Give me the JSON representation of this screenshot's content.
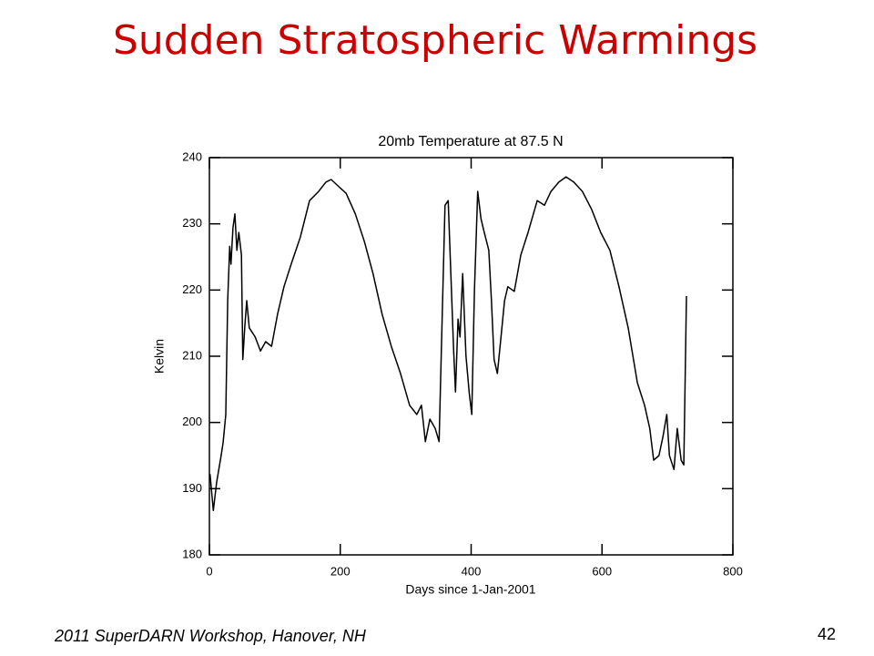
{
  "slide": {
    "title": "Sudden Stratospheric Warmings",
    "footer": "2011 SuperDARN Workshop, Hanover, NH",
    "page_number": "42"
  },
  "chart_data": {
    "type": "line",
    "title": "20mb Temperature at 87.5 N",
    "x_label": "Days since 1-Jan-2001",
    "y_label": "Kelvin",
    "color": "#000000",
    "x": [
      1,
      6,
      11,
      18,
      21,
      25,
      28,
      31,
      33,
      36,
      39,
      42,
      45,
      49,
      51,
      54,
      57,
      61,
      70,
      78,
      86,
      95,
      104,
      114,
      125,
      139,
      153,
      167,
      178,
      186,
      198,
      209,
      223,
      237,
      250,
      264,
      278,
      292,
      306,
      317,
      324,
      330,
      337,
      345,
      351,
      356,
      360,
      365,
      369,
      373,
      376,
      380,
      383,
      387,
      392,
      397,
      401,
      405,
      410,
      415,
      420,
      427,
      431,
      435,
      440,
      445,
      451,
      456,
      466,
      476,
      487,
      501,
      512,
      522,
      534,
      545,
      557,
      570,
      584,
      598,
      612,
      626,
      640,
      654,
      665,
      673,
      679,
      687,
      693,
      699,
      703,
      710,
      715,
      721,
      725,
      729
    ],
    "values": [
      192.2,
      186.7,
      190.9,
      195,
      197,
      201.2,
      218.4,
      226.6,
      223.9,
      229.4,
      231.5,
      226,
      228.7,
      225.3,
      209.5,
      214.3,
      218.4,
      214.3,
      212.9,
      210.8,
      212.2,
      211.5,
      216.3,
      220.5,
      223.9,
      228,
      233.5,
      234.9,
      236.3,
      236.7,
      235.6,
      234.6,
      231.5,
      227.3,
      222.5,
      216.3,
      211.5,
      207.4,
      202.6,
      201.2,
      202.6,
      197.1,
      200.5,
      199.1,
      197.1,
      217,
      232.8,
      233.5,
      222.5,
      211.5,
      204.6,
      215.6,
      212.9,
      222.5,
      210.1,
      204.6,
      201.2,
      219.8,
      234.9,
      230.8,
      228.7,
      226,
      218.4,
      209.5,
      207.4,
      212.2,
      218.4,
      220.5,
      219.8,
      225.3,
      228.7,
      233.5,
      232.8,
      234.9,
      236.3,
      237.1,
      236.3,
      234.9,
      232.2,
      228.7,
      226,
      220.5,
      214.3,
      206,
      202.6,
      199.1,
      194.3,
      195,
      197.8,
      201.2,
      195,
      192.9,
      199.1,
      194.3,
      193.6,
      219.1
    ],
    "xlim": [
      0,
      800
    ],
    "xticks": [
      0,
      200,
      400,
      600,
      800
    ],
    "ylim": [
      180,
      240
    ],
    "yticks": [
      180,
      190,
      200,
      210,
      220,
      230,
      240
    ]
  }
}
